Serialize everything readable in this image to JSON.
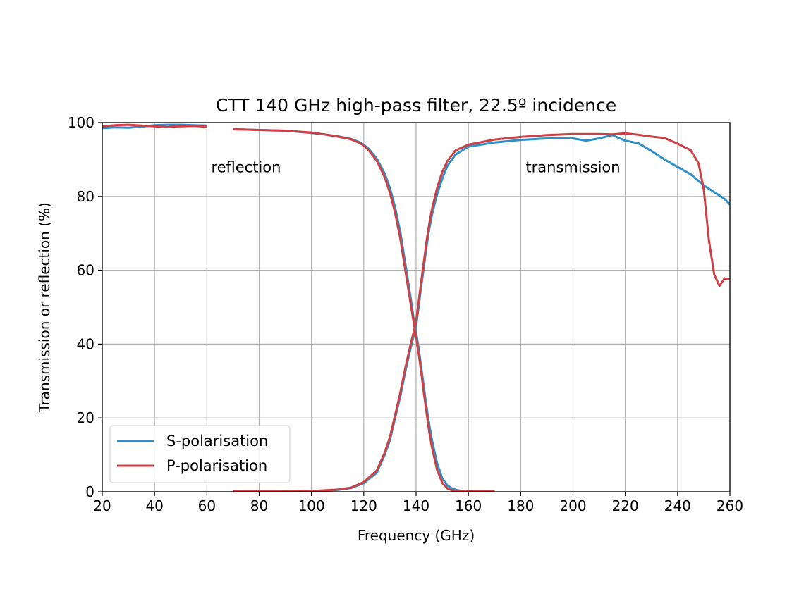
{
  "chart_data": {
    "type": "line",
    "title": "CTT 140 GHz high-pass filter, 22.5º incidence",
    "xlabel": "Frequency (GHz)",
    "ylabel": "Transmission or reflection (%)",
    "xlim": [
      20,
      260
    ],
    "ylim": [
      0,
      100
    ],
    "xticks": [
      "20",
      "40",
      "60",
      "80",
      "100",
      "120",
      "140",
      "160",
      "180",
      "200",
      "220",
      "240",
      "260"
    ],
    "yticks": [
      "0",
      "20",
      "40",
      "60",
      "80",
      "100"
    ],
    "grid": true,
    "legend_position": "lower-left",
    "annotations": [
      {
        "text": "reflection",
        "x": 75,
        "y": 86.5
      },
      {
        "text": "transmission",
        "x": 200,
        "y": 86.5
      }
    ],
    "series": [
      {
        "name": "S-polarisation",
        "color": "#2e8fc8",
        "segments": [
          {
            "kind": "reflection",
            "x": [
              20,
              25,
              30,
              35,
              40,
              45,
              50,
              55,
              60
            ],
            "y": [
              98.5,
              98.7,
              98.6,
              98.9,
              99.3,
              99.4,
              99.4,
              99.3,
              99.2
            ]
          },
          {
            "kind": "reflection",
            "x": [
              70,
              80,
              90,
              100,
              105,
              110,
              115,
              118,
              120,
              122,
              125,
              128,
              130,
              132,
              134,
              136,
              138,
              139,
              140,
              141,
              142,
              143,
              144,
              145,
              146,
              148,
              150,
              152,
              154,
              156,
              158,
              160,
              165,
              170
            ],
            "y": [
              98.2,
              98.0,
              97.8,
              97.2,
              96.8,
              96.3,
              95.6,
              94.8,
              94.0,
              92.8,
              90.2,
              86.2,
              82.3,
              77.0,
              70.2,
              61.2,
              52.2,
              47.2,
              43.2,
              38.8,
              33.6,
              28.2,
              23.0,
              18.4,
              14.2,
              7.8,
              3.6,
              1.7,
              0.8,
              0.4,
              0.2,
              0.1,
              0.1,
              0.1
            ]
          },
          {
            "kind": "transmission",
            "x": [
              70,
              80,
              90,
              100,
              110,
              115,
              120,
              125,
              128,
              130,
              132,
              134,
              136,
              138,
              140,
              141,
              142,
              143,
              144,
              145,
              146,
              148,
              150,
              152,
              155,
              160,
              170,
              180,
              190,
              200,
              205,
              210,
              215,
              220,
              225,
              230,
              235,
              240,
              245,
              250,
              255,
              258,
              260
            ],
            "y": [
              0.1,
              0.1,
              0.1,
              0.2,
              0.5,
              1.0,
              2.3,
              5.2,
              10.0,
              14.0,
              20.0,
              26.0,
              33.0,
              39.2,
              44.8,
              50.2,
              55.8,
              61.0,
              66.4,
              71.0,
              74.8,
              80.5,
              84.8,
              88.3,
              91.3,
              93.5,
              94.6,
              95.3,
              95.7,
              95.7,
              95.1,
              95.7,
              96.6,
              95.1,
              94.4,
              92.3,
              90.0,
              88.0,
              86.0,
              83.0,
              80.7,
              79.3,
              77.8
            ]
          }
        ]
      },
      {
        "name": "P-polarisation",
        "color": "#cd4045",
        "segments": [
          {
            "kind": "reflection",
            "x": [
              20,
              25,
              30,
              35,
              40,
              45,
              50,
              55,
              60
            ],
            "y": [
              99.0,
              99.3,
              99.4,
              99.2,
              99.0,
              98.8,
              99.0,
              99.1,
              98.9
            ]
          },
          {
            "kind": "reflection",
            "x": [
              70,
              80,
              90,
              100,
              105,
              110,
              115,
              118,
              120,
              122,
              125,
              128,
              130,
              132,
              134,
              136,
              138,
              139,
              140,
              141,
              142,
              143,
              144,
              145,
              146,
              148,
              150,
              152,
              154,
              156,
              158,
              160,
              165,
              170
            ],
            "y": [
              98.2,
              98.0,
              97.8,
              97.3,
              96.8,
              96.2,
              95.5,
              94.6,
              93.8,
              92.4,
              89.6,
              85.2,
              81.0,
              75.5,
              68.4,
              59.4,
              50.6,
              46.2,
              42.0,
              37.4,
              32.2,
              26.6,
              21.4,
              16.4,
              12.2,
              6.0,
              2.4,
              0.9,
              0.3,
              0.1,
              0.1,
              0.1,
              0.1,
              0.1
            ]
          },
          {
            "kind": "transmission",
            "x": [
              70,
              80,
              90,
              100,
              110,
              115,
              120,
              125,
              128,
              130,
              132,
              134,
              136,
              138,
              140,
              141,
              142,
              143,
              144,
              145,
              146,
              148,
              150,
              152,
              155,
              160,
              170,
              180,
              190,
              200,
              205,
              210,
              215,
              220,
              225,
              230,
              235,
              240,
              245,
              248,
              250,
              252,
              254,
              256,
              258,
              260
            ],
            "y": [
              0.1,
              0.1,
              0.1,
              0.2,
              0.6,
              1.1,
              2.6,
              5.8,
              10.6,
              14.8,
              20.8,
              27.0,
              34.0,
              40.2,
              46.0,
              51.6,
              57.2,
              62.4,
              67.8,
              72.4,
              76.4,
              82.2,
              86.6,
              89.6,
              92.4,
              94.0,
              95.4,
              96.1,
              96.6,
              96.9,
              96.9,
              96.9,
              96.8,
              97.1,
              96.7,
              96.2,
              95.8,
              94.3,
              92.5,
              89.0,
              82.0,
              68.0,
              58.8,
              55.8,
              57.8,
              57.5
            ]
          }
        ]
      }
    ]
  }
}
